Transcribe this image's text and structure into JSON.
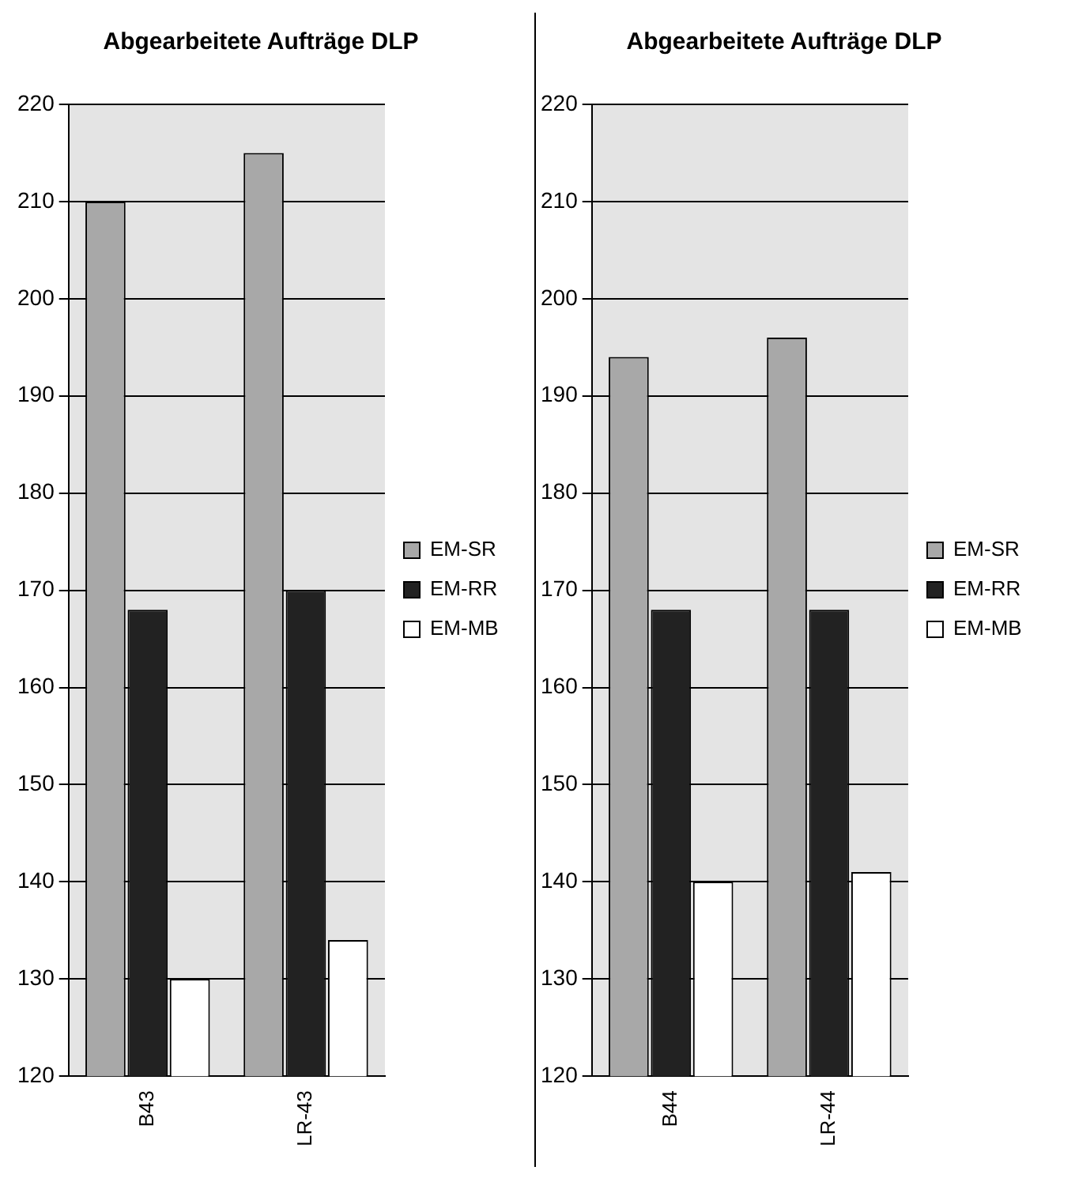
{
  "chart_data": [
    {
      "type": "bar",
      "title": "Abgearbeitete Aufträge DLP",
      "categories": [
        "B43",
        "LR-43"
      ],
      "series": [
        {
          "name": "EM-SR",
          "color": "#a8a8a8",
          "values": [
            210,
            215
          ]
        },
        {
          "name": "EM-RR",
          "color": "#222222",
          "values": [
            168,
            170
          ]
        },
        {
          "name": "EM-MB",
          "color": "#ffffff",
          "values": [
            130,
            134
          ]
        }
      ],
      "ylim": [
        120,
        220
      ],
      "yticks": [
        120,
        130,
        140,
        150,
        160,
        170,
        180,
        190,
        200,
        210,
        220
      ],
      "grid": "y",
      "legend": "right"
    },
    {
      "type": "bar",
      "title": "Abgearbeitete Aufträge DLP",
      "categories": [
        "B44",
        "LR-44"
      ],
      "series": [
        {
          "name": "EM-SR",
          "color": "#a8a8a8",
          "values": [
            194,
            196
          ]
        },
        {
          "name": "EM-RR",
          "color": "#222222",
          "values": [
            168,
            168
          ]
        },
        {
          "name": "EM-MB",
          "color": "#ffffff",
          "values": [
            140,
            141
          ]
        }
      ],
      "ylim": [
        120,
        220
      ],
      "yticks": [
        120,
        130,
        140,
        150,
        160,
        170,
        180,
        190,
        200,
        210,
        220
      ],
      "grid": "y",
      "legend": "right"
    }
  ]
}
